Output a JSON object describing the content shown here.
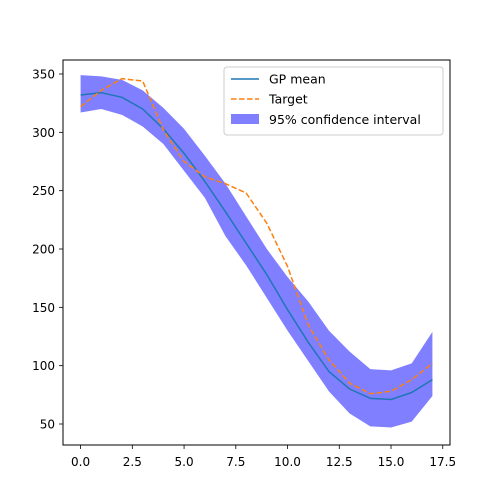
{
  "chart_data": {
    "type": "line",
    "title": "",
    "xlabel": "",
    "ylabel": "",
    "xlim": [
      -0.85,
      17.85
    ],
    "ylim": [
      32,
      362
    ],
    "xticks": [
      0.0,
      2.5,
      5.0,
      7.5,
      10.0,
      12.5,
      15.0,
      17.5
    ],
    "xtick_labels": [
      "0.0",
      "2.5",
      "5.0",
      "7.5",
      "10.0",
      "12.5",
      "15.0",
      "17.5"
    ],
    "yticks": [
      50,
      100,
      150,
      200,
      250,
      300,
      350
    ],
    "ytick_labels": [
      "50",
      "100",
      "150",
      "200",
      "250",
      "300",
      "350"
    ],
    "grid": false,
    "legend_position": "top-right",
    "x": [
      0,
      1,
      2,
      3,
      4,
      5,
      6,
      7,
      8,
      9,
      10,
      11,
      12,
      13,
      14,
      15,
      16,
      17
    ],
    "series": [
      {
        "name": "GP mean",
        "style": "solid",
        "color": "#1f77b4",
        "values": [
          332,
          334,
          330,
          320,
          303,
          282,
          258,
          232,
          205,
          178,
          148,
          120,
          95,
          80,
          72,
          71,
          77,
          88
        ]
      },
      {
        "name": "Target",
        "style": "dashed",
        "color": "#ff7f0e",
        "values": [
          322,
          336,
          346,
          344,
          302,
          275,
          262,
          256,
          248,
          222,
          185,
          135,
          105,
          85,
          76,
          78,
          88,
          102
        ]
      }
    ],
    "confidence_interval": {
      "name": "95% confidence interval",
      "color": "#0000ff",
      "upper": [
        349,
        348,
        345,
        336,
        321,
        303,
        280,
        256,
        228,
        200,
        176,
        155,
        130,
        112,
        97,
        96,
        102,
        129
      ],
      "lower": [
        317,
        320,
        315,
        305,
        290,
        267,
        244,
        211,
        186,
        158,
        130,
        104,
        78,
        59,
        48,
        47,
        52,
        74
      ]
    }
  }
}
